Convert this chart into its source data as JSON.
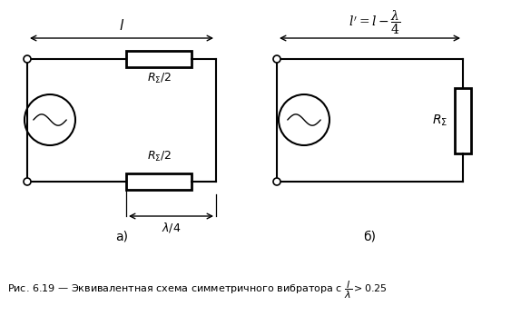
{
  "bg_color": "#ffffff",
  "fig_width": 5.74,
  "fig_height": 3.59,
  "dpi": 100,
  "label_a": "а)",
  "label_b": "б)"
}
